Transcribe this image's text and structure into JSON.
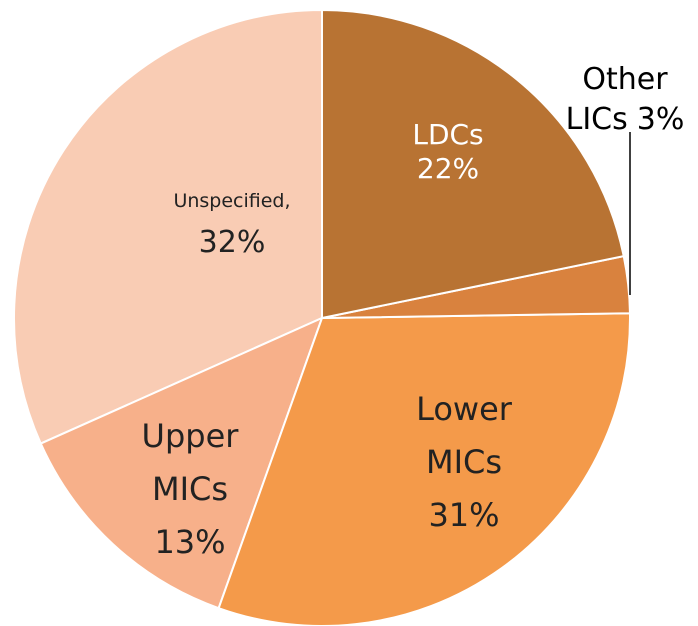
{
  "chart_data": {
    "type": "pie",
    "categories": [
      "LDCs",
      "Other LICs",
      "Lower MICs",
      "Upper MICs",
      "Unspecified,"
    ],
    "values": [
      22,
      3,
      31,
      13,
      32
    ],
    "value_labels": [
      "22%",
      "3%",
      "31%",
      "13%",
      "32%"
    ],
    "colors": [
      "#b87333",
      "#d9823e",
      "#f49a4a",
      "#f7b08a",
      "#f9ccb4"
    ]
  }
}
